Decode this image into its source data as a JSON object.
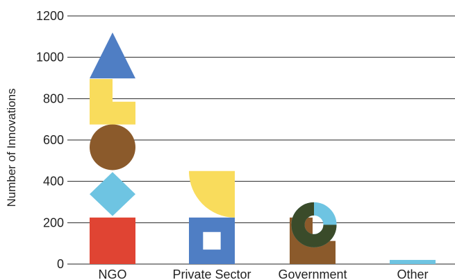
{
  "chart_data": {
    "type": "bar",
    "title": "",
    "xlabel": "",
    "ylabel": "Number of Innovations",
    "ylim": [
      0,
      1200
    ],
    "yticks": [
      0,
      200,
      400,
      600,
      800,
      1000,
      1200
    ],
    "grid": true,
    "categories": [
      "NGO",
      "Private Sector",
      "Government",
      "Other"
    ],
    "values": [
      1120,
      450,
      225,
      20
    ],
    "colors": {
      "red": "#e04433",
      "light_blue": "#6ec4e2",
      "brown": "#8b5a2b",
      "yellow": "#f9dc5c",
      "blue": "#4f7ec4",
      "dark_green": "#3a4b2a",
      "white": "#ffffff"
    }
  }
}
